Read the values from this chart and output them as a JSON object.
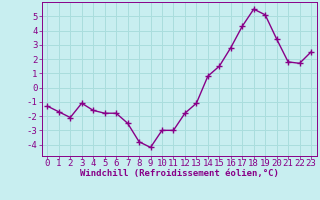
{
  "x": [
    0,
    1,
    2,
    3,
    4,
    5,
    6,
    7,
    8,
    9,
    10,
    11,
    12,
    13,
    14,
    15,
    16,
    17,
    18,
    19,
    20,
    21,
    22,
    23
  ],
  "y": [
    -1.3,
    -1.7,
    -2.1,
    -1.1,
    -1.6,
    -1.8,
    -1.8,
    -2.5,
    -3.8,
    -4.2,
    -3.0,
    -3.0,
    -1.8,
    -1.1,
    0.8,
    1.5,
    2.8,
    4.3,
    5.5,
    5.1,
    3.4,
    1.8,
    1.7,
    2.5
  ],
  "line_color": "#880088",
  "marker": "+",
  "marker_size": 4,
  "bg_color": "#c8eef0",
  "grid_color": "#aadddd",
  "xlabel": "Windchill (Refroidissement éolien,°C)",
  "xlabel_color": "#880088",
  "tick_color": "#880088",
  "ylim": [
    -4.8,
    6.0
  ],
  "yticks": [
    -4,
    -3,
    -2,
    -1,
    0,
    1,
    2,
    3,
    4,
    5
  ],
  "xticks": [
    0,
    1,
    2,
    3,
    4,
    5,
    6,
    7,
    8,
    9,
    10,
    11,
    12,
    13,
    14,
    15,
    16,
    17,
    18,
    19,
    20,
    21,
    22,
    23
  ],
  "axis_label_fontsize": 6.5,
  "tick_fontsize": 6.5,
  "line_width": 1.0
}
